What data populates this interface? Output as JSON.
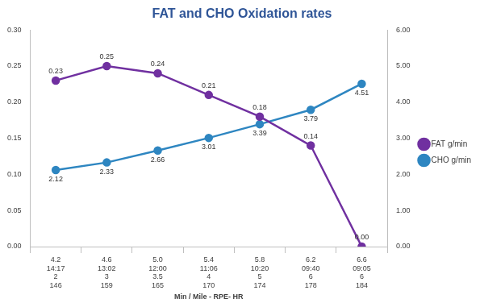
{
  "chart_data": {
    "type": "line",
    "title": "FAT and CHO Oxidation rates",
    "xlabel": "Min / Mile - RPE- HR",
    "categories": [
      [
        "4.2",
        "14:17",
        "2",
        "146"
      ],
      [
        "4.6",
        "13:02",
        "3",
        "159"
      ],
      [
        "5.0",
        "12:00",
        "3.5",
        "165"
      ],
      [
        "5.4",
        "11:06",
        "4",
        "170"
      ],
      [
        "5.8",
        "10:20",
        "5",
        "174"
      ],
      [
        "6.2",
        "09:40",
        "6",
        "178"
      ],
      [
        "6.6",
        "09:05",
        "6",
        "184"
      ]
    ],
    "series": [
      {
        "name": "CHO g/min",
        "color": "#2E86C1",
        "axis": "y2",
        "marker": "circle",
        "line_style": "solid",
        "values": [
          2.12,
          2.33,
          2.66,
          3.01,
          3.39,
          3.79,
          4.51
        ]
      },
      {
        "name": "FAT g/min",
        "color": "#7030A0",
        "marker": "circle",
        "line_style": "solid",
        "values": [
          0.23,
          0.25,
          0.24,
          0.21,
          0.18,
          0.14,
          0
        ],
        "value_labels": [
          "0.23",
          "0.25",
          "0.24",
          "0.21",
          "0.18",
          "0.14",
          "0.00"
        ]
      }
    ],
    "ylim": [
      0,
      0.3
    ],
    "yticks": [
      {
        "value": 0,
        "label": "0.00"
      },
      {
        "value": 0.05,
        "label": "0.05"
      },
      {
        "value": 0.1,
        "label": "0.10"
      },
      {
        "value": 0.15,
        "label": "0.15"
      },
      {
        "value": 0.2,
        "label": "0.20"
      },
      {
        "value": 0.25,
        "label": "0.25"
      },
      {
        "value": 0.3,
        "label": "0.30"
      }
    ],
    "y2lim": [
      0,
      6
    ],
    "y2ticks": [
      {
        "value": 0,
        "label": "0.00"
      },
      {
        "value": 1,
        "label": "1.00"
      },
      {
        "value": 2,
        "label": "2.00"
      },
      {
        "value": 3,
        "label": "3.00"
      },
      {
        "value": 4,
        "label": "4.00"
      },
      {
        "value": 5,
        "label": "5.00"
      },
      {
        "value": 6,
        "label": "6.00"
      }
    ],
    "grid": false,
    "legend": "right",
    "data_labels": true
  }
}
